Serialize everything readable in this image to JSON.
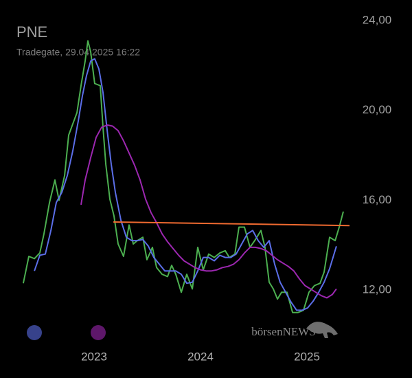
{
  "chart_data": {
    "type": "line",
    "title": "PNE",
    "subtitle": "Tradegate, 29.04.2025 16:22",
    "watermark": "börsenNEWS",
    "xlim": [
      2022.116,
      2025.4
    ],
    "xticks": [
      2023,
      2024,
      2025
    ],
    "ylim": [
      10.5,
      24
    ],
    "yticks": [
      {
        "value": 12,
        "label": "12,00"
      },
      {
        "value": 16,
        "label": "16,00"
      },
      {
        "value": 20,
        "label": "20,00"
      },
      {
        "value": 24,
        "label": "24,00"
      }
    ],
    "series": [
      {
        "color": "#4caf50",
        "x": [
          2022.335,
          2022.387,
          2022.439,
          2022.49,
          2022.529,
          2022.581,
          2022.632,
          2022.671,
          2022.723,
          2022.761,
          2022.8,
          2022.839,
          2022.877,
          2022.916,
          2022.942,
          2022.968,
          2023.006,
          2023.058,
          2023.084,
          2023.11,
          2023.148,
          2023.187,
          2023.226,
          2023.277,
          2023.329,
          2023.368,
          2023.406,
          2023.458,
          2023.497,
          2023.548,
          2023.587,
          2023.639,
          2023.69,
          2023.729,
          2023.768,
          2023.819,
          2023.871,
          2023.923,
          2023.974,
          2024.026,
          2024.077,
          2024.129,
          2024.181,
          2024.232,
          2024.271,
          2024.323,
          2024.361,
          2024.413,
          2024.465,
          2024.516,
          2024.568,
          2024.606,
          2024.645,
          2024.684,
          2024.723,
          2024.761,
          2024.813,
          2024.865,
          2024.916,
          2024.968,
          2025.019,
          2025.071,
          2025.123,
          2025.161,
          2025.213,
          2025.265,
          2025.303,
          2025.342
        ],
        "values": [
          12.3,
          13.5,
          13.4,
          13.65,
          14.5,
          15.9,
          16.9,
          16.0,
          17.1,
          18.9,
          19.4,
          19.9,
          21.1,
          22.2,
          23.1,
          22.6,
          21.2,
          21.1,
          19.25,
          17.6,
          16.05,
          15.3,
          14.05,
          13.5,
          14.9,
          14.05,
          14.2,
          14.35,
          13.35,
          13.9,
          13.0,
          12.7,
          12.6,
          13.1,
          12.7,
          11.9,
          12.7,
          12.05,
          13.9,
          12.9,
          13.6,
          13.45,
          13.65,
          13.75,
          13.45,
          13.6,
          14.8,
          14.8,
          13.9,
          14.25,
          14.65,
          13.9,
          12.35,
          12.05,
          11.6,
          11.9,
          11.9,
          11.0,
          11.0,
          11.1,
          11.9,
          12.2,
          12.3,
          12.8,
          14.35,
          14.2,
          14.8,
          15.5
        ]
      },
      {
        "color": "#5b6ee8",
        "x": [
          2022.439,
          2022.49,
          2022.542,
          2022.594,
          2022.645,
          2022.697,
          2022.748,
          2022.8,
          2022.852,
          2022.89,
          2022.929,
          2022.968,
          2023.006,
          2023.045,
          2023.084,
          2023.123,
          2023.161,
          2023.2,
          2023.252,
          2023.303,
          2023.355,
          2023.406,
          2023.458,
          2023.51,
          2023.561,
          2023.613,
          2023.665,
          2023.716,
          2023.768,
          2023.819,
          2023.871,
          2023.923,
          2023.974,
          2024.026,
          2024.077,
          2024.129,
          2024.181,
          2024.232,
          2024.284,
          2024.335,
          2024.387,
          2024.439,
          2024.49,
          2024.542,
          2024.594,
          2024.645,
          2024.697,
          2024.748,
          2024.8,
          2024.852,
          2024.903,
          2024.955,
          2025.006,
          2025.058,
          2025.11,
          2025.161,
          2025.213,
          2025.277
        ],
        "values": [
          12.85,
          13.55,
          13.6,
          14.65,
          15.9,
          16.35,
          17.1,
          18.2,
          19.55,
          20.65,
          21.55,
          22.2,
          22.3,
          21.85,
          20.8,
          19.1,
          17.6,
          16.35,
          15.1,
          14.35,
          14.2,
          14.2,
          14.25,
          13.95,
          13.45,
          13.15,
          12.85,
          12.85,
          12.85,
          12.7,
          12.3,
          12.35,
          12.85,
          13.45,
          13.45,
          13.3,
          13.55,
          13.45,
          13.45,
          13.6,
          14.05,
          14.5,
          14.65,
          14.2,
          13.9,
          14.2,
          13.15,
          12.35,
          11.9,
          11.45,
          11.1,
          11.1,
          11.2,
          11.5,
          11.9,
          12.35,
          12.95,
          13.95
        ]
      },
      {
        "color": "#9c27b0",
        "x": [
          2022.877,
          2022.916,
          2022.968,
          2023.019,
          2023.071,
          2023.123,
          2023.174,
          2023.226,
          2023.277,
          2023.329,
          2023.381,
          2023.432,
          2023.484,
          2023.535,
          2023.587,
          2023.639,
          2023.69,
          2023.742,
          2023.794,
          2023.845,
          2023.897,
          2023.948,
          2024.0,
          2024.052,
          2024.103,
          2024.155,
          2024.206,
          2024.258,
          2024.31,
          2024.361,
          2024.413,
          2024.465,
          2024.516,
          2024.568,
          2024.619,
          2024.671,
          2024.723,
          2024.774,
          2024.826,
          2024.877,
          2024.929,
          2024.981,
          2025.032,
          2025.084,
          2025.135,
          2025.187,
          2025.239,
          2025.277
        ],
        "values": [
          15.8,
          16.9,
          17.9,
          18.8,
          19.25,
          19.35,
          19.3,
          19.1,
          18.65,
          18.1,
          17.55,
          16.9,
          16.05,
          15.45,
          15.0,
          14.5,
          14.15,
          13.85,
          13.55,
          13.3,
          13.15,
          13.0,
          12.9,
          12.85,
          12.85,
          12.9,
          13.0,
          13.05,
          13.15,
          13.35,
          13.65,
          13.9,
          13.9,
          13.85,
          13.75,
          13.55,
          13.35,
          13.2,
          13.05,
          12.85,
          12.5,
          12.2,
          12.05,
          11.9,
          11.75,
          11.65,
          11.8,
          12.05
        ]
      },
      {
        "color": "#f06a30",
        "x": [
          2023.181,
          2025.4
        ],
        "values": [
          15.03,
          14.87
        ]
      }
    ]
  }
}
